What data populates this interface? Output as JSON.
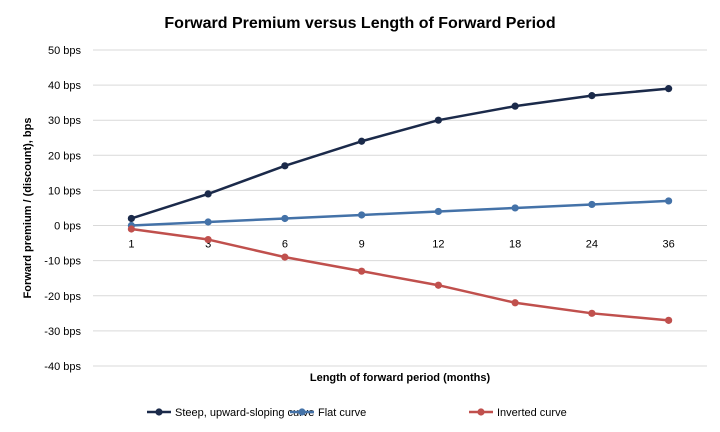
{
  "chart_data": {
    "type": "line",
    "title": "Forward Premium versus Length of Forward Period",
    "xlabel": "Length of forward period (months)",
    "ylabel": "Forward premium / (discount), bps",
    "categories": [
      "1",
      "3",
      "6",
      "9",
      "12",
      "18",
      "24",
      "36"
    ],
    "ylim": [
      -40,
      50
    ],
    "yticks": [
      "50 bps",
      "40 bps",
      "30 bps",
      "20 bps",
      "10 bps",
      "0 bps",
      "-10 bps",
      "-20 bps",
      "-30 bps",
      "-40 bps"
    ],
    "ytick_values": [
      50,
      40,
      30,
      20,
      10,
      0,
      -10,
      -20,
      -30,
      -40
    ],
    "grid": true,
    "legend": "bottom",
    "series": [
      {
        "name": "Steep, upward-sloping curve",
        "values": [
          2,
          9,
          17,
          24,
          30,
          34,
          37,
          39
        ],
        "color": "#1b2a4a"
      },
      {
        "name": "Flat curve",
        "values": [
          0,
          1,
          2,
          3,
          4,
          5,
          6,
          7
        ],
        "color": "#4472a8"
      },
      {
        "name": "Inverted curve",
        "values": [
          -1,
          -4,
          -9,
          -13,
          -17,
          -22,
          -25,
          -27
        ],
        "color": "#c0504d"
      }
    ]
  }
}
